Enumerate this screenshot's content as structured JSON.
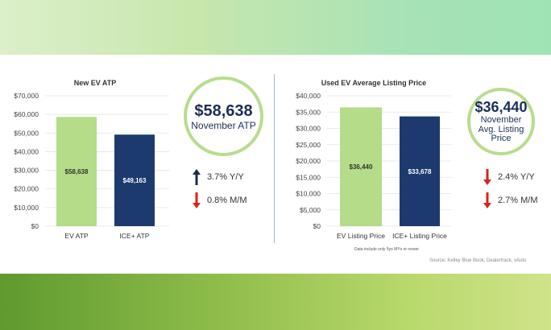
{
  "chart_data": [
    {
      "type": "bar",
      "title": "New EV ATP",
      "categories": [
        "EV ATP",
        "ICE+ ATP"
      ],
      "values": [
        58638,
        49163
      ],
      "value_labels": [
        "$58,638",
        "$49,163"
      ],
      "colors": [
        "#b5dc88",
        "#1c3a6e"
      ],
      "label_colors": [
        "#333333",
        "#ffffff"
      ],
      "ylim": [
        0,
        70000
      ],
      "yticks": [
        0,
        10000,
        20000,
        30000,
        40000,
        50000,
        60000,
        70000
      ],
      "ytick_labels": [
        "$0",
        "$10,000",
        "$20,000",
        "$30,000",
        "$40,000",
        "$50,000",
        "$60,000",
        "$70,000"
      ],
      "grid": true
    },
    {
      "type": "bar",
      "title": "Used EV Average Listing Price",
      "categories": [
        "EV Listing Price",
        "ICE+ Listing Price"
      ],
      "values": [
        36440,
        33678
      ],
      "value_labels": [
        "$36,440",
        "$33,678"
      ],
      "colors": [
        "#b5dc88",
        "#1c3a6e"
      ],
      "label_colors": [
        "#333333",
        "#ffffff"
      ],
      "ylim": [
        0,
        40000
      ],
      "yticks": [
        0,
        5000,
        10000,
        15000,
        20000,
        25000,
        30000,
        35000,
        40000
      ],
      "ytick_labels": [
        "$0",
        "$5,000",
        "$10,000",
        "$15,000",
        "$20,000",
        "$25,000",
        "$30,000",
        "$35,000",
        "$40,000"
      ],
      "grid": true
    }
  ],
  "new_ev": {
    "circle_value": "$58,638",
    "circle_label": "November ATP",
    "stats": [
      {
        "direction": "up",
        "text": "3.7% Y/Y",
        "color": "#1c2c48"
      },
      {
        "direction": "down",
        "text": "0.8% M/M",
        "color": "#d8231f"
      }
    ]
  },
  "used_ev": {
    "circle_value": "$36,440",
    "circle_label_lines": [
      "November",
      "Avg. Listing",
      "Price"
    ],
    "stats": [
      {
        "direction": "down",
        "text": "2.4% Y/Y",
        "color": "#d8231f"
      },
      {
        "direction": "down",
        "text": "2.7% M/M",
        "color": "#d8231f"
      }
    ],
    "note": "Data include only 5yo MYs or newer"
  },
  "source": "Source: Kelley Blue Book, Dealertrack, vAuto"
}
